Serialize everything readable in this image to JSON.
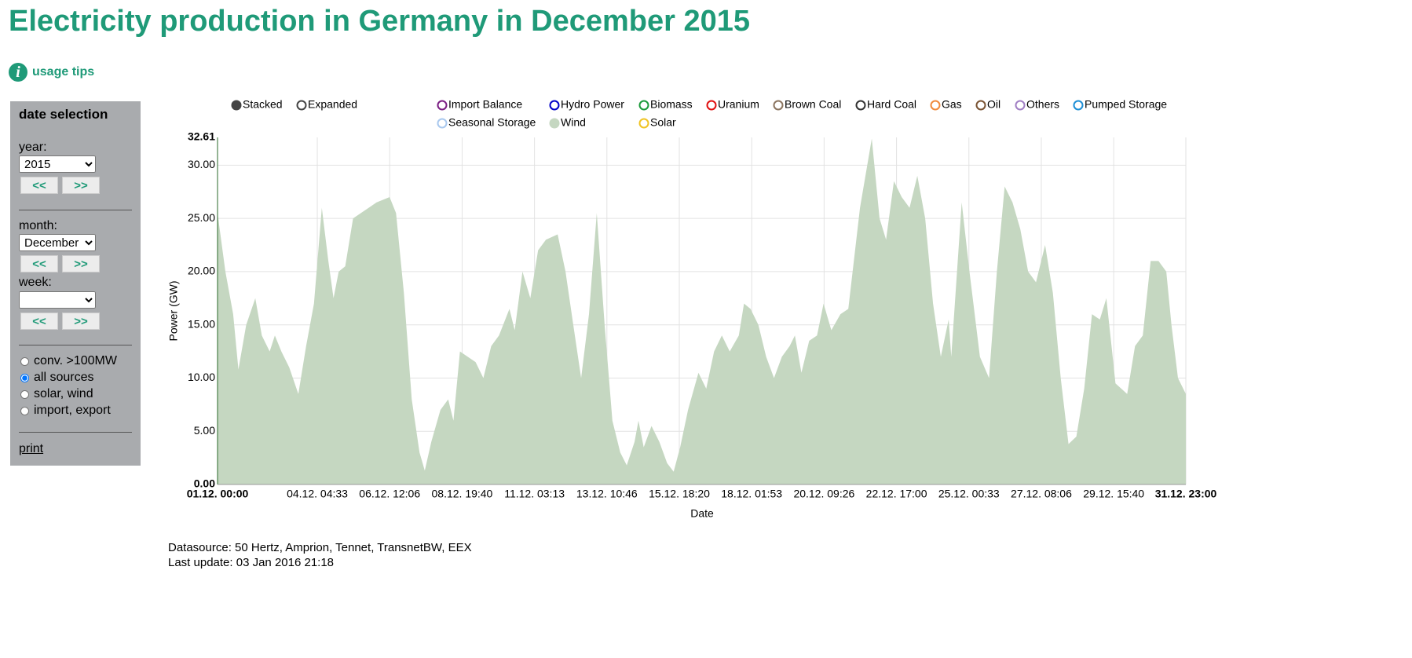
{
  "page": {
    "title": "Electricity production in Germany in December 2015",
    "usage_tips": "usage tips",
    "sidebar": {
      "heading": "date selection",
      "year": {
        "label": "year:",
        "value": "2015",
        "prev": "<<",
        "next": ">>"
      },
      "month": {
        "label": "month:",
        "value": "December",
        "prev": "<<",
        "next": ">>"
      },
      "week": {
        "label": "week:",
        "prev": "<<",
        "next": ">>"
      },
      "sources": [
        {
          "label": "conv. >100MW",
          "checked": false
        },
        {
          "label": "all sources",
          "checked": true
        },
        {
          "label": "solar, wind",
          "checked": false
        },
        {
          "label": "import, export",
          "checked": false
        }
      ],
      "print": "print"
    },
    "footer": [
      "Datasource: 50 Hertz, Amprion, Tennet, TransnetBW, EEX",
      "Last update: 03 Jan 2016 21:18"
    ]
  },
  "chart_data": {
    "type": "area",
    "xlabel": "Date",
    "ylabel": "Power (GW)",
    "modes": [
      {
        "name": "Stacked",
        "selected": true
      },
      {
        "name": "Expanded",
        "selected": false
      }
    ],
    "legend_items": [
      {
        "name": "Import Balance",
        "color": "#7b1f83"
      },
      {
        "name": "Hydro Power",
        "color": "#0000c8"
      },
      {
        "name": "Biomass",
        "color": "#1c9a3c"
      },
      {
        "name": "Uranium",
        "color": "#e01010"
      },
      {
        "name": "Brown Coal",
        "color": "#8b7560"
      },
      {
        "name": "Hard Coal",
        "color": "#333333"
      },
      {
        "name": "Gas",
        "color": "#f08a3c"
      },
      {
        "name": "Oil",
        "color": "#7a5434"
      },
      {
        "name": "Others",
        "color": "#a17fc4"
      },
      {
        "name": "Pumped Storage",
        "color": "#1e8fd6"
      },
      {
        "name": "Seasonal Storage",
        "color": "#a9c8ee"
      }
    ],
    "legend_items_after": [
      {
        "name": "Solar",
        "color": "#f0c424"
      }
    ],
    "x": [
      0,
      6,
      12,
      16,
      22,
      29,
      34,
      40,
      44,
      49,
      55,
      62,
      68,
      74,
      80,
      85,
      89,
      93,
      98,
      104,
      110,
      116,
      122,
      132,
      137,
      143,
      149,
      155,
      159,
      164,
      171,
      177,
      181,
      186,
      192,
      198,
      204,
      210,
      216,
      224,
      228,
      234,
      240,
      246,
      252,
      261,
      267,
      273,
      279,
      285,
      291,
      297,
      303,
      309,
      314,
      320,
      323,
      327,
      333,
      339,
      345,
      350,
      355,
      361,
      369,
      375,
      381,
      387,
      393,
      400,
      404,
      409,
      415,
      421,
      427,
      433,
      439,
      443,
      448,
      454,
      460,
      465,
      471,
      478,
      484,
      493,
      502,
      508,
      513,
      519,
      525,
      531,
      537,
      543,
      549,
      555,
      561,
      563,
      571,
      577,
      585,
      592,
      598,
      604,
      610,
      616,
      622,
      628,
      635,
      641,
      647,
      653,
      659,
      665,
      671,
      677,
      682,
      686,
      689,
      698,
      704,
      710,
      716,
      722,
      728,
      732,
      737,
      743
    ],
    "series": [
      {
        "name": "Wind",
        "color": "#c5d7c1",
        "values": [
          25.5,
          20,
          16,
          10.8,
          15,
          17.5,
          14,
          12.5,
          14,
          12.5,
          11,
          8.5,
          13,
          17,
          26,
          21,
          17.5,
          20,
          20.5,
          25,
          25.5,
          26,
          26.5,
          27,
          25.5,
          18,
          8,
          3,
          1.3,
          4,
          7,
          8,
          6,
          12.5,
          12,
          11.5,
          10,
          13,
          14,
          16.5,
          14.5,
          20,
          17.5,
          22,
          23,
          23.5,
          20,
          15,
          10,
          16,
          25.5,
          15,
          6,
          3,
          1.8,
          4,
          6,
          3.5,
          5.5,
          4,
          2,
          1.2,
          3.5,
          7,
          10.5,
          9,
          12.5,
          14,
          12.5,
          14,
          17,
          16.5,
          15,
          12,
          10,
          12,
          13,
          14,
          10.5,
          13.5,
          14,
          17,
          14.5,
          16,
          16.5,
          26,
          32.5,
          25,
          23,
          28.5,
          27,
          26,
          29,
          25,
          17,
          12,
          15.5,
          12,
          26.5,
          20,
          12,
          10,
          20,
          28,
          26.5,
          24,
          20,
          19,
          22.5,
          18,
          10,
          3.8,
          4.5,
          9,
          16,
          15.5,
          17.5,
          13,
          9.5,
          8.5,
          13,
          14,
          21,
          21,
          20,
          15,
          10,
          8.5
        ]
      }
    ],
    "xlim": [
      0,
      743
    ],
    "xticks": [
      {
        "value": 0,
        "label": "01.12. 00:00"
      },
      {
        "value": 76.55,
        "label": "04.12. 04:33"
      },
      {
        "value": 132.1,
        "label": "06.12. 12:06"
      },
      {
        "value": 187.67,
        "label": "08.12. 19:40"
      },
      {
        "value": 243.22,
        "label": "11.12. 03:13"
      },
      {
        "value": 298.77,
        "label": "13.12. 10:46"
      },
      {
        "value": 354.33,
        "label": "15.12. 18:20"
      },
      {
        "value": 409.88,
        "label": "18.12. 01:53"
      },
      {
        "value": 465.43,
        "label": "20.12. 09:26"
      },
      {
        "value": 521,
        "label": "22.12. 17:00"
      },
      {
        "value": 576.55,
        "label": "25.12. 00:33"
      },
      {
        "value": 632.1,
        "label": "27.12. 08:06"
      },
      {
        "value": 687.67,
        "label": "29.12. 15:40"
      },
      {
        "value": 743,
        "label": "31.12. 23:00"
      }
    ],
    "ylim": [
      0,
      32.61
    ],
    "yticks": [
      {
        "value": 0,
        "label": "0.00"
      },
      {
        "value": 5,
        "label": "5.00"
      },
      {
        "value": 10,
        "label": "10.00"
      },
      {
        "value": 15,
        "label": "15.00"
      },
      {
        "value": 20,
        "label": "20.00"
      },
      {
        "value": 25,
        "label": "25.00"
      },
      {
        "value": 30,
        "label": "30.00"
      }
    ],
    "grid": true
  }
}
